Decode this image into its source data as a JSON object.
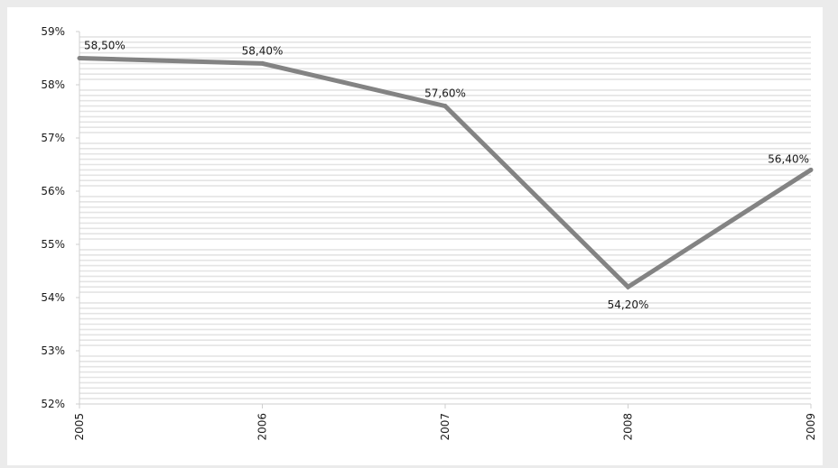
{
  "chart_data": {
    "type": "line",
    "title": "",
    "xlabel": "",
    "ylabel": "",
    "categories": [
      "2005",
      "2006",
      "2007",
      "2008",
      "2009"
    ],
    "series": [
      {
        "values": [
          58.5,
          58.4,
          57.6,
          54.2,
          56.4
        ],
        "data_labels": [
          "58,50%",
          "58,40%",
          "57,60%",
          "54,20%",
          "56,40%"
        ]
      }
    ],
    "ylim": [
      52,
      59
    ],
    "y_ticks": [
      52,
      53,
      54,
      55,
      56,
      57,
      58,
      59
    ],
    "y_tick_labels": [
      "52%",
      "53%",
      "54%",
      "55%",
      "56%",
      "57%",
      "58%",
      "59%"
    ],
    "grid": true,
    "legend": "none",
    "colors": {
      "page_background": "#ebebeb",
      "plot_background": "#ffffff",
      "minor_grid": "#e4e4e4",
      "major_grid": "#ffffff",
      "axis": "#cfcfcf",
      "line": "#838383",
      "text": "#1a1a1a"
    }
  }
}
